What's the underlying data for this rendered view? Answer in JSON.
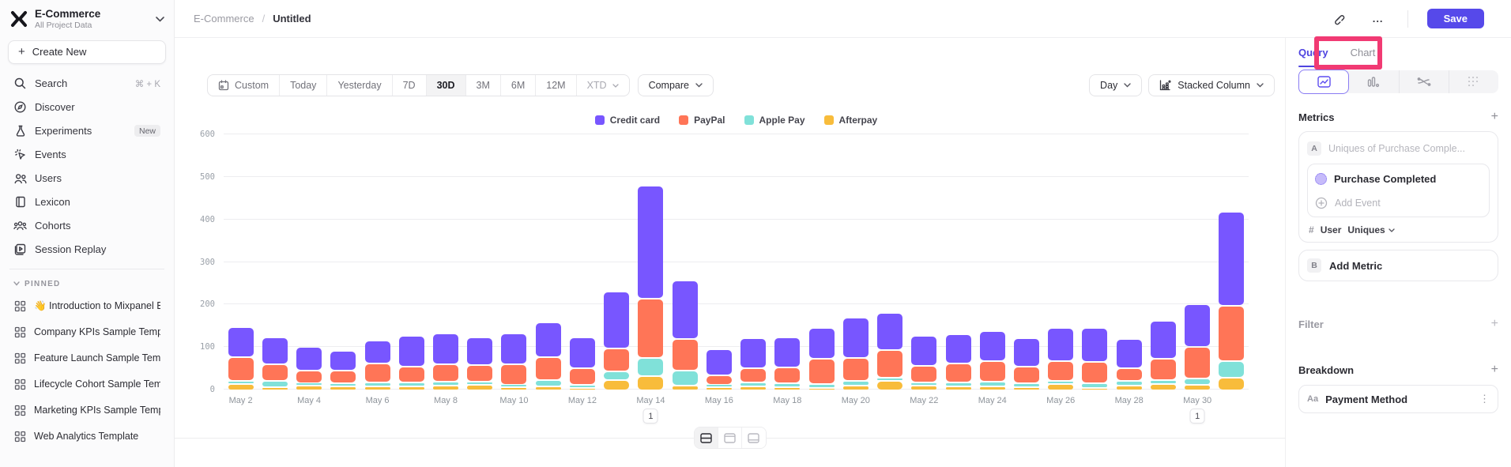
{
  "sidebar": {
    "project": {
      "name": "E-Commerce",
      "scope": "All Project Data"
    },
    "create_new_label": "Create New",
    "nav": [
      {
        "label": "Search",
        "icon": "search-icon",
        "shortcut": "⌘ + K"
      },
      {
        "label": "Discover",
        "icon": "compass-icon"
      },
      {
        "label": "Experiments",
        "icon": "flask-icon",
        "badge": "New"
      },
      {
        "label": "Events",
        "icon": "event-spark-icon"
      },
      {
        "label": "Users",
        "icon": "users-icon"
      },
      {
        "label": "Lexicon",
        "icon": "book-icon"
      },
      {
        "label": "Cohorts",
        "icon": "people-group-icon"
      },
      {
        "label": "Session Replay",
        "icon": "session-replay-icon"
      }
    ],
    "pinned_label": "PINNED",
    "pinned": [
      "👋 Introduction to Mixpanel Bo",
      "Company KPIs Sample Templat",
      "Feature Launch Sample Templa",
      "Lifecycle Cohort Sample Temp",
      "Marketing KPIs Sample Templat",
      "Web Analytics Template"
    ]
  },
  "topbar": {
    "breadcrumb_root": "E-Commerce",
    "breadcrumb_sep": "/",
    "breadcrumb_leaf": "Untitled",
    "more_label": "...",
    "save_label": "Save"
  },
  "controls": {
    "ranges": [
      "Custom",
      "Today",
      "Yesterday",
      "7D",
      "30D",
      "3M",
      "6M",
      "12M",
      "XTD"
    ],
    "active_range": "30D",
    "compare_label": "Compare",
    "granularity_label": "Day",
    "chart_type_label": "Stacked Column"
  },
  "right_panel": {
    "tabs": {
      "query": "Query",
      "chart": "Chart"
    },
    "metrics_title": "Metrics",
    "metric_a": {
      "badge": "A",
      "placeholder": "Uniques of Purchase Comple...",
      "event_name": "Purchase Completed",
      "add_event_label": "Add Event",
      "agg_hash": "#",
      "agg_entity": "User",
      "agg_type": "Uniques"
    },
    "metric_b": {
      "badge": "B",
      "label": "Add Metric"
    },
    "filter_title": "Filter",
    "breakdown_title": "Breakdown",
    "breakdown_item": {
      "badge": "Aa",
      "label": "Payment Method"
    }
  },
  "colors": {
    "accent_purple": "#4f44e0",
    "save_purple": "#5649ea",
    "annotation_pink": "#f13a73"
  },
  "chart_data": {
    "type": "bar",
    "stacked": true,
    "x": [
      "May 2",
      "May 3",
      "May 4",
      "May 5",
      "May 6",
      "May 7",
      "May 8",
      "May 9",
      "May 10",
      "May 11",
      "May 12",
      "May 13",
      "May 14",
      "May 15",
      "May 16",
      "May 17",
      "May 18",
      "May 19",
      "May 20",
      "May 21",
      "May 22",
      "May 23",
      "May 24",
      "May 25",
      "May 26",
      "May 27",
      "May 28",
      "May 29",
      "May 30",
      "May 31"
    ],
    "series": [
      {
        "name": "Credit card",
        "color": "#7856FF",
        "values": [
          70,
          64,
          56,
          46,
          55,
          72,
          71,
          65,
          71,
          82,
          72,
          134,
          267,
          138,
          61,
          69,
          70,
          71,
          94,
          87,
          71,
          69,
          72,
          67,
          79,
          80,
          69,
          88,
          100,
          221
        ]
      },
      {
        "name": "PayPal",
        "color": "#FF7557",
        "values": [
          55,
          38,
          30,
          30,
          45,
          38,
          42,
          40,
          48,
          53,
          40,
          54,
          139,
          75,
          22,
          35,
          38,
          60,
          55,
          65,
          40,
          45,
          48,
          40,
          45,
          50,
          30,
          50,
          74,
          130
        ]
      },
      {
        "name": "Apple Pay",
        "color": "#80E1D9",
        "values": [
          8,
          15,
          5,
          6,
          8,
          8,
          8,
          6,
          6,
          15,
          8,
          19,
          43,
          34,
          6,
          8,
          8,
          10,
          10,
          8,
          6,
          8,
          10,
          8,
          8,
          12,
          10,
          10,
          14,
          39
        ]
      },
      {
        "name": "Afterpay",
        "color": "#F8BC3B",
        "values": [
          15,
          8,
          12,
          10,
          10,
          10,
          12,
          14,
          8,
          10,
          5,
          25,
          33,
          12,
          8,
          10,
          8,
          5,
          12,
          22,
          12,
          10,
          10,
          8,
          15,
          5,
          12,
          15,
          14,
          29
        ]
      }
    ],
    "stack_order_bottom_to_top": [
      "Afterpay",
      "Apple Pay",
      "PayPal",
      "Credit card"
    ],
    "ylim": [
      0,
      600
    ],
    "yticks": [
      0,
      100,
      200,
      300,
      400,
      500,
      600
    ],
    "xtick_labels": [
      "May 2",
      "May 4",
      "May 6",
      "May 8",
      "May 10",
      "May 12",
      "May 14",
      "May 16",
      "May 18",
      "May 20",
      "May 22",
      "May 24",
      "May 26",
      "May 28",
      "May 30"
    ],
    "annotations": [
      {
        "x": "May 14",
        "label": "1"
      },
      {
        "x": "May 30",
        "label": "1"
      }
    ],
    "legend_position": "top-center",
    "grid": "horizontal"
  }
}
